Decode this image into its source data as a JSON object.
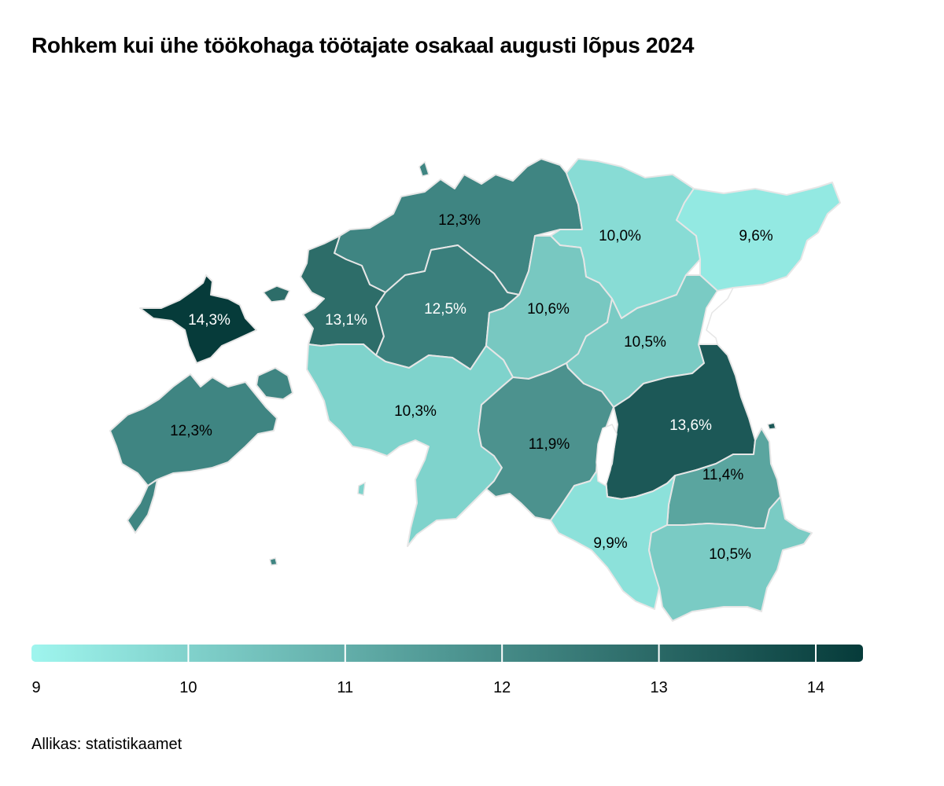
{
  "title": "Rohkem kui ühe töökohaga töötajate osakaal augusti lõpus 2024",
  "source": "Allikas: statistikaamet",
  "legend": {
    "min": 9,
    "max": 14,
    "ticks": [
      "9",
      "10",
      "11",
      "12",
      "13",
      "14"
    ],
    "color_low": "#9ff5ee",
    "color_high": "#063b3a"
  },
  "regions": [
    {
      "id": "hiiumaa",
      "value": 14.3,
      "label": "14,3%",
      "color": "#063b3a",
      "label_color": "#ffffff"
    },
    {
      "id": "saaremaa",
      "value": 12.3,
      "label": "12,3%",
      "color": "#3f8582",
      "label_color": "#000000"
    },
    {
      "id": "laanemaa",
      "value": 13.1,
      "label": "13,1%",
      "color": "#2d6d69",
      "label_color": "#ffffff"
    },
    {
      "id": "harjumaa",
      "value": 12.3,
      "label": "12,3%",
      "color": "#3f8582",
      "label_color": "#000000"
    },
    {
      "id": "raplamaa",
      "value": 12.5,
      "label": "12,5%",
      "color": "#3a7f7c",
      "label_color": "#ffffff"
    },
    {
      "id": "parnumaa",
      "value": 10.3,
      "label": "10,3%",
      "color": "#7fd3cc",
      "label_color": "#000000"
    },
    {
      "id": "jarvamaa",
      "value": 10.6,
      "label": "10,6%",
      "color": "#78c8c1",
      "label_color": "#000000"
    },
    {
      "id": "laane-virumaa",
      "value": 10.0,
      "label": "10,0%",
      "color": "#88dcd5",
      "label_color": "#000000"
    },
    {
      "id": "ida-virumaa",
      "value": 9.6,
      "label": "9,6%",
      "color": "#93e9e2",
      "label_color": "#000000"
    },
    {
      "id": "jogevamaa",
      "value": 10.5,
      "label": "10,5%",
      "color": "#7acbc4",
      "label_color": "#000000"
    },
    {
      "id": "viljandimaa",
      "value": 11.9,
      "label": "11,9%",
      "color": "#4c928e",
      "label_color": "#000000"
    },
    {
      "id": "tartumaa",
      "value": 13.6,
      "label": "13,6%",
      "color": "#1c5857",
      "label_color": "#ffffff"
    },
    {
      "id": "polvamaa",
      "value": 11.4,
      "label": "11,4%",
      "color": "#5aa59f",
      "label_color": "#000000"
    },
    {
      "id": "valgamaa",
      "value": 9.9,
      "label": "9,9%",
      "color": "#8ce1da",
      "label_color": "#000000"
    },
    {
      "id": "vorumaa",
      "value": 10.5,
      "label": "10,5%",
      "color": "#7acbc4",
      "label_color": "#000000"
    }
  ]
}
